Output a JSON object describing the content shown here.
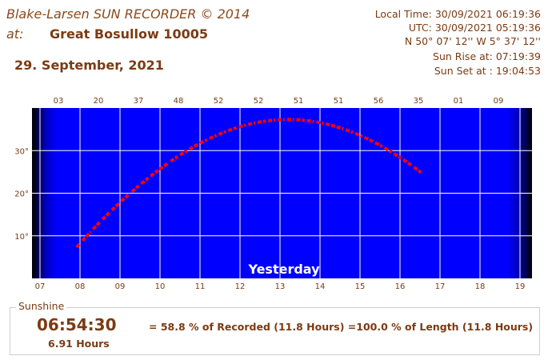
{
  "header": {
    "title": "Blake-Larsen SUN RECORDER © 2014",
    "at_label": "at:",
    "location": "Great Bosullow 10005",
    "date": "29. September, 2021"
  },
  "info": {
    "local_time": "Local Time: 30/09/2021 06:19:36",
    "utc": "UTC: 30/09/2021 05:19:36",
    "coords": "N 50° 07' 12''    W 5° 37' 12''",
    "sun_rise": "Sun Rise at:  07:19:39",
    "sun_set": "Sun Set at :  19:04:53"
  },
  "chart_data": {
    "type": "line",
    "x_tick_labels": [
      "07",
      "08",
      "09",
      "10",
      "11",
      "12",
      "13",
      "14",
      "15",
      "16",
      "17",
      "18",
      "19"
    ],
    "y_tick_labels": [
      "10°",
      "20°",
      "30°"
    ],
    "top_labels": [
      "03",
      "20",
      "37",
      "48",
      "52",
      "52",
      "51",
      "51",
      "56",
      "35",
      "01",
      "09"
    ],
    "xlim": [
      6.8,
      19.3
    ],
    "ylim": [
      0,
      40
    ],
    "sun_rise_hour": 7.3275,
    "sun_set_hour": 19.0814,
    "peak_elevation": 37.3,
    "annotation": "Yesterday",
    "colors": {
      "background": "#0000ff",
      "sunshine": "#ff0000",
      "no_sunshine": "#a0a0a0",
      "grid": "#ffffff"
    }
  },
  "sunshine": {
    "legend": "Sunshine",
    "duration": "06:54:30",
    "hours": "6.91 Hours",
    "summary": "= 58.8 % of Recorded (11.8 Hours) =100.0 % of Length (11.8 Hours)"
  }
}
